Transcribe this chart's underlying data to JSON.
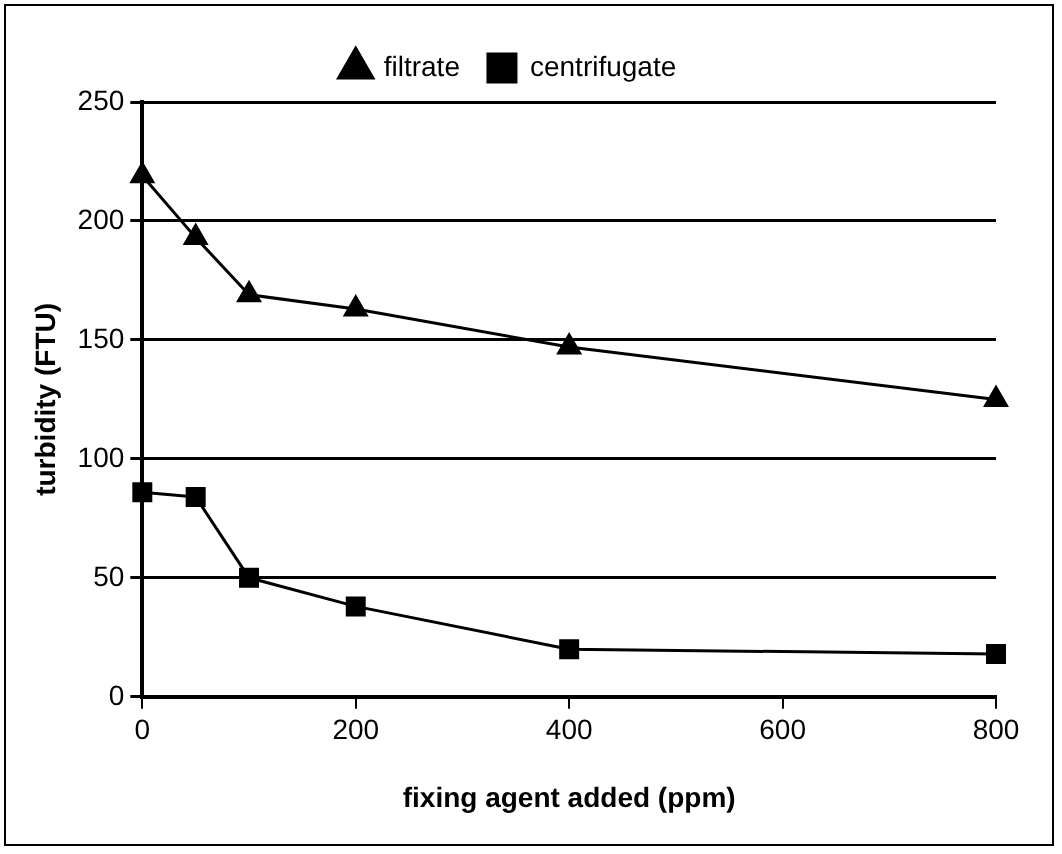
{
  "chart_data": {
    "type": "line",
    "xlabel": "fixing agent added (ppm)",
    "ylabel": "turbidity (FTU)",
    "x": [
      0,
      50,
      100,
      200,
      400,
      800
    ],
    "series": [
      {
        "name": "filtrate",
        "color": "#000000",
        "marker": "triangle",
        "values": [
          219,
          193,
          169,
          163,
          147,
          125
        ]
      },
      {
        "name": "centrifugate",
        "color": "#000000",
        "marker": "square",
        "values": [
          86,
          84,
          50,
          38,
          20,
          18
        ]
      }
    ],
    "xlim": [
      0,
      800
    ],
    "xticks": [
      0,
      200,
      400,
      600,
      800
    ],
    "ylim": [
      0,
      250
    ],
    "yticks": [
      0,
      50,
      100,
      150,
      200,
      250
    ],
    "grid": "y",
    "legend": "top",
    "line_style": "solid"
  }
}
